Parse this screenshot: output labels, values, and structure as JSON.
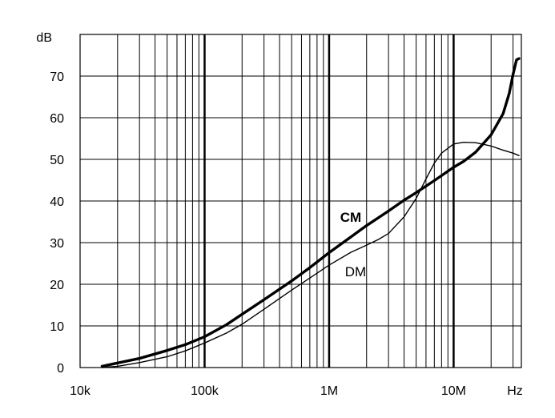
{
  "chart_data": {
    "type": "line",
    "title": "",
    "xlabel": "",
    "ylabel": "",
    "x_scale": "log",
    "x_unit": "Hz",
    "y_unit": "dB",
    "xlim": [
      10000,
      35000000
    ],
    "ylim": [
      0,
      80
    ],
    "grid": true,
    "x_ticks": [
      {
        "value": 10000,
        "label": "10k"
      },
      {
        "value": 100000,
        "label": "100k"
      },
      {
        "value": 1000000,
        "label": "1M"
      },
      {
        "value": 10000000,
        "label": "10M"
      }
    ],
    "y_ticks": [
      0,
      10,
      20,
      30,
      40,
      50,
      60,
      70
    ],
    "series": [
      {
        "name": "CM",
        "line_weight": "thick",
        "points": [
          [
            15000,
            0.3
          ],
          [
            20000,
            1.1
          ],
          [
            30000,
            2.2
          ],
          [
            50000,
            4.1
          ],
          [
            70000,
            5.5
          ],
          [
            100000,
            7.4
          ],
          [
            150000,
            10.3
          ],
          [
            200000,
            12.8
          ],
          [
            300000,
            16.3
          ],
          [
            500000,
            20.8
          ],
          [
            700000,
            24.0
          ],
          [
            1000000,
            27.6
          ],
          [
            1500000,
            31.4
          ],
          [
            2000000,
            34.1
          ],
          [
            3000000,
            37.6
          ],
          [
            4000000,
            40.2
          ],
          [
            5000000,
            42.0
          ],
          [
            7000000,
            44.9
          ],
          [
            10000000,
            48.1
          ],
          [
            12000000,
            49.5
          ],
          [
            15000000,
            51.7
          ],
          [
            20000000,
            55.9
          ],
          [
            25000000,
            61.0
          ],
          [
            28000000,
            65.9
          ],
          [
            30000000,
            70.4
          ],
          [
            32000000,
            73.9
          ],
          [
            33500000,
            74.2
          ]
        ]
      },
      {
        "name": "DM",
        "line_weight": "thin",
        "points": [
          [
            15000,
            0.0
          ],
          [
            20000,
            0.3
          ],
          [
            30000,
            1.2
          ],
          [
            50000,
            2.6
          ],
          [
            70000,
            4.0
          ],
          [
            100000,
            5.9
          ],
          [
            150000,
            8.3
          ],
          [
            200000,
            10.4
          ],
          [
            300000,
            14.0
          ],
          [
            500000,
            18.6
          ],
          [
            700000,
            21.5
          ],
          [
            1000000,
            24.6
          ],
          [
            1500000,
            27.7
          ],
          [
            2000000,
            29.4
          ],
          [
            2500000,
            30.8
          ],
          [
            3000000,
            32.2
          ],
          [
            4000000,
            36.2
          ],
          [
            5000000,
            40.6
          ],
          [
            6000000,
            45.3
          ],
          [
            7000000,
            49.1
          ],
          [
            8000000,
            51.5
          ],
          [
            10000000,
            53.7
          ],
          [
            12000000,
            54.1
          ],
          [
            15000000,
            54.0
          ],
          [
            20000000,
            53.2
          ],
          [
            25000000,
            52.2
          ],
          [
            30000000,
            51.5
          ],
          [
            33500000,
            50.9
          ]
        ]
      }
    ]
  }
}
